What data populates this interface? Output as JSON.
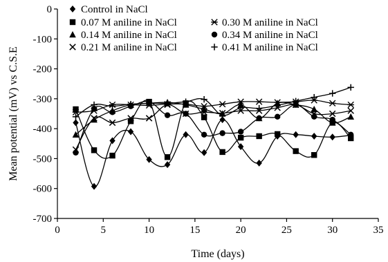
{
  "chart_data": {
    "type": "line",
    "title": "",
    "xlabel": "Time (days)",
    "ylabel": "Mean potential (mV) vs C.S.E",
    "xlim": [
      0,
      35
    ],
    "ylim": [
      -700,
      0
    ],
    "x_ticks": [
      0,
      5,
      10,
      15,
      20,
      25,
      30,
      35
    ],
    "y_ticks": [
      0,
      -100,
      -200,
      -300,
      -400,
      -500,
      -600,
      -700
    ],
    "x_tick_labels": [
      "0",
      "5",
      "10",
      "15",
      "20",
      "25",
      "30",
      "35"
    ],
    "y_tick_labels": [
      "0",
      "-100",
      "-200",
      "-300",
      "-400",
      "-500",
      "-600",
      "-700"
    ],
    "grid": false,
    "legend_position": "top",
    "x": [
      2,
      4,
      6,
      8,
      10,
      12,
      14,
      16,
      18,
      20,
      22,
      24,
      26,
      28,
      30,
      32
    ],
    "series": [
      {
        "name": "Control in NaCl",
        "marker": "diamond",
        "values": [
          -380,
          -593,
          -440,
          -410,
          -503,
          -520,
          -420,
          -480,
          -370,
          -460,
          -515,
          -425,
          -420,
          -425,
          -428,
          -422
        ]
      },
      {
        "name": "0.07 M aniline in NaCl",
        "marker": "square",
        "values": [
          -335,
          -472,
          -490,
          -375,
          -310,
          -495,
          -315,
          -362,
          -478,
          -430,
          -425,
          -418,
          -475,
          -488,
          -380,
          -432
        ]
      },
      {
        "name": "0.14 M aniline in NaCl",
        "marker": "triangle",
        "values": [
          -420,
          -370,
          -340,
          -320,
          -315,
          -312,
          -320,
          -335,
          -350,
          -320,
          -365,
          -315,
          -320,
          -335,
          -380,
          -360
        ]
      },
      {
        "name": "0.21 M aniline in NaCl",
        "marker": "x",
        "values": [
          -470,
          -365,
          -380,
          -365,
          -365,
          -320,
          -350,
          -345,
          -348,
          -340,
          -340,
          -330,
          -320,
          -350,
          -350,
          -340
        ]
      },
      {
        "name": "0.30 M aniline in NaCl",
        "marker": "asterisk",
        "values": [
          -345,
          -340,
          -320,
          -320,
          -322,
          -318,
          -318,
          -325,
          -318,
          -310,
          -310,
          -312,
          -310,
          -305,
          -315,
          -320
        ]
      },
      {
        "name": "0.34 M aniline in NaCl",
        "marker": "circle",
        "values": [
          -480,
          -333,
          -345,
          -325,
          -310,
          -355,
          -350,
          -420,
          -415,
          -410,
          -365,
          -360,
          -320,
          -360,
          -370,
          -420
        ]
      },
      {
        "name": "0.41 M aniline in NaCl",
        "marker": "plus",
        "values": [
          -360,
          -320,
          -325,
          -318,
          -315,
          -315,
          -310,
          -302,
          -355,
          -330,
          -332,
          -322,
          -308,
          -295,
          -282,
          -262
        ]
      }
    ]
  }
}
